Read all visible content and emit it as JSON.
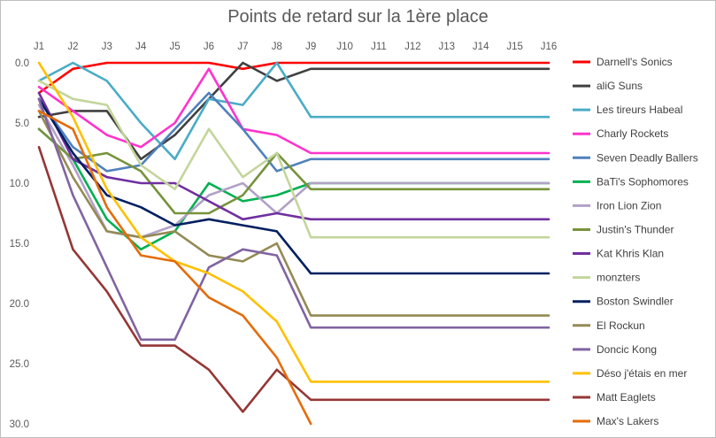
{
  "chart_data": {
    "type": "line",
    "title": "Points de retard sur la 1ère place",
    "xlabel": "",
    "ylabel": "",
    "categories": [
      "J1",
      "J2",
      "J3",
      "J4",
      "J5",
      "J6",
      "J7",
      "J8",
      "J9",
      "J10",
      "J11",
      "J12",
      "J13",
      "J14",
      "J15",
      "J16"
    ],
    "y_axis": {
      "min": 0,
      "max": 30,
      "reversed": true,
      "ticks": [
        "0.0",
        "5.0",
        "10.0",
        "15.0",
        "20.0",
        "25.0",
        "30.0"
      ]
    },
    "x_axis_position": "top",
    "grid": false,
    "legend_position": "right",
    "series": [
      {
        "name": "Darnell's Sonics",
        "color": "#ff0000",
        "values": [
          2.5,
          0.5,
          0,
          0,
          0,
          0,
          0.5,
          0,
          0,
          0,
          0,
          0,
          0,
          0,
          0,
          0
        ]
      },
      {
        "name": "aliG Suns",
        "color": "#404040",
        "values": [
          4.5,
          4,
          4,
          8,
          6,
          3,
          0,
          1.5,
          0.5,
          0.5,
          0.5,
          0.5,
          0.5,
          0.5,
          0.5,
          0.5
        ]
      },
      {
        "name": "Les tireurs Habeal",
        "color": "#4bacc6",
        "values": [
          1.5,
          0,
          1.5,
          5,
          8,
          3,
          3.5,
          0,
          4.5,
          4.5,
          4.5,
          4.5,
          4.5,
          4.5,
          4.5,
          4.5
        ]
      },
      {
        "name": "Charly Rockets",
        "color": "#ff33cc",
        "values": [
          2,
          4,
          6,
          7,
          5,
          0.5,
          5.5,
          6,
          7.5,
          7.5,
          7.5,
          7.5,
          7.5,
          7.5,
          7.5,
          7.5
        ]
      },
      {
        "name": "Seven Deadly Ballers",
        "color": "#4f81bd",
        "values": [
          3,
          7,
          9,
          8.5,
          5.5,
          2.5,
          5.5,
          9,
          8,
          8,
          8,
          8,
          8,
          8,
          8,
          8
        ]
      },
      {
        "name": "BaTi's Sophomores",
        "color": "#00b050",
        "values": [
          5.5,
          8,
          13,
          15.5,
          14,
          10,
          11.5,
          11,
          10,
          10,
          10,
          10,
          10,
          10,
          10,
          10
        ]
      },
      {
        "name": "Iron Lion Zion",
        "color": "#b2a1c7",
        "values": [
          3.5,
          8.5,
          14,
          14.5,
          13.5,
          11,
          10,
          12.5,
          10,
          10,
          10,
          10,
          10,
          10,
          10,
          10
        ]
      },
      {
        "name": "Justin's Thunder",
        "color": "#77933c",
        "values": [
          5.5,
          8,
          7.5,
          9,
          12.5,
          12.5,
          11,
          7.5,
          10.5,
          10.5,
          10.5,
          10.5,
          10.5,
          10.5,
          10.5,
          10.5
        ]
      },
      {
        "name": "Kat Khris Klan",
        "color": "#7030a0",
        "values": [
          2.5,
          8,
          9.5,
          10,
          10,
          11.5,
          13,
          12.5,
          13,
          13,
          13,
          13,
          13,
          13,
          13,
          13
        ]
      },
      {
        "name": "monzters",
        "color": "#c3d69b",
        "values": [
          1.5,
          3,
          3.5,
          8.5,
          10.5,
          5.5,
          9.5,
          7.5,
          14.5,
          14.5,
          14.5,
          14.5,
          14.5,
          14.5,
          14.5,
          14.5
        ]
      },
      {
        "name": "Boston Swindler",
        "color": "#002060",
        "values": [
          3,
          7.5,
          11,
          12,
          13.5,
          13,
          13.5,
          14,
          17.5,
          17.5,
          17.5,
          17.5,
          17.5,
          17.5,
          17.5,
          17.5
        ]
      },
      {
        "name": "El Rockun",
        "color": "#948a54",
        "values": [
          4,
          9.5,
          14,
          14.5,
          14,
          16,
          16.5,
          15,
          21,
          21,
          21,
          21,
          21,
          21,
          21,
          21
        ]
      },
      {
        "name": "Doncic Kong",
        "color": "#8064a2",
        "values": [
          3,
          11,
          17,
          23,
          23,
          17,
          15.5,
          16,
          22,
          22,
          22,
          22,
          22,
          22,
          22,
          22
        ]
      },
      {
        "name": "Déso j'étais en mer",
        "color": "#ffc000",
        "values": [
          0,
          4.5,
          10.5,
          14.5,
          16.5,
          17.5,
          19,
          21.5,
          26.5,
          26.5,
          26.5,
          26.5,
          26.5,
          26.5,
          26.5,
          26.5
        ]
      },
      {
        "name": "Matt Eaglets",
        "color": "#953735",
        "values": [
          7,
          15.5,
          19,
          23.5,
          23.5,
          25.5,
          29,
          25.5,
          28,
          28,
          28,
          28,
          28,
          28,
          28,
          28
        ]
      },
      {
        "name": "Max's Lakers",
        "color": "#e46c0a",
        "values": [
          4,
          5.5,
          12,
          16,
          16.5,
          19.5,
          21,
          24.5,
          30,
          null,
          null,
          null,
          null,
          null,
          null,
          null
        ]
      }
    ]
  }
}
